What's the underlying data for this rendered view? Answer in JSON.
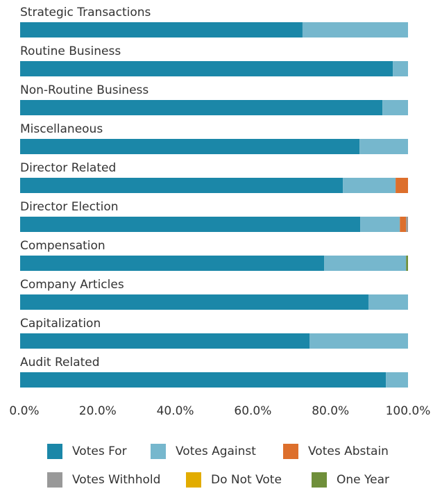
{
  "chart_data": {
    "type": "stacked_barh",
    "categories": [
      "Strategic Transactions",
      "Routine Business",
      "Non-Routine Business",
      "Miscellaneous",
      "Director Related",
      "Director Election",
      "Compensation",
      "Company Articles",
      "Capitalization",
      "Audit Related"
    ],
    "series": [
      {
        "name": "Votes For",
        "color": "#1b87a8",
        "values": [
          72.8,
          96.1,
          93.4,
          87.5,
          83.2,
          87.7,
          78.4,
          89.8,
          74.6,
          94.3
        ]
      },
      {
        "name": "Votes Against",
        "color": "#76b7cd",
        "values": [
          27.2,
          3.9,
          6.6,
          12.5,
          13.6,
          10.2,
          21.1,
          10.2,
          25.4,
          5.7
        ]
      },
      {
        "name": "Votes Abstain",
        "color": "#dd6f2c",
        "values": [
          0,
          0,
          0,
          0,
          3.2,
          1.6,
          0,
          0,
          0,
          0
        ]
      },
      {
        "name": "Votes Withhold",
        "color": "#999999",
        "values": [
          0,
          0,
          0,
          0,
          0,
          0.5,
          0,
          0,
          0,
          0
        ]
      },
      {
        "name": "Do Not Vote",
        "color": "#e2ac00",
        "values": [
          0,
          0,
          0,
          0,
          0,
          0,
          0,
          0,
          0,
          0
        ]
      },
      {
        "name": "One Year",
        "color": "#6f8f3a",
        "values": [
          0,
          0,
          0,
          0,
          0,
          0,
          0.5,
          0,
          0,
          0
        ]
      }
    ],
    "xlim": [
      0,
      100
    ],
    "xticks": [
      {
        "value": 0,
        "label": "0.0%"
      },
      {
        "value": 20,
        "label": "20.0%"
      },
      {
        "value": 40,
        "label": "40.0%"
      },
      {
        "value": 60,
        "label": "60.0%"
      },
      {
        "value": 80,
        "label": "80.0%"
      },
      {
        "value": 100,
        "label": "100.0%"
      }
    ]
  }
}
